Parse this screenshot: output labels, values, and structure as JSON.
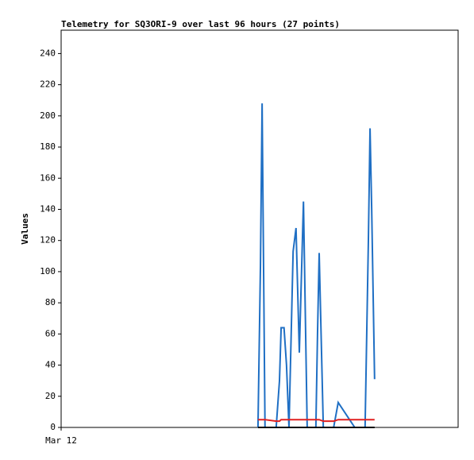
{
  "chart_data": {
    "type": "line",
    "title": "Telemetry for SQ3ORI-9 over last 96 hours (27 points)",
    "y_label": "Values",
    "x": [
      47.6,
      48.2,
      48.6,
      49.3,
      52.0,
      52.8,
      53.2,
      53.9,
      54.5,
      55.1,
      56.1,
      56.8,
      57.6,
      58.6,
      59.5,
      61.6,
      62.0,
      62.4,
      63.4,
      65.9,
      67.0,
      71.0,
      73.5,
      74.3,
      74.7,
      75.1,
      75.8
    ],
    "series": [
      {
        "color": "#1f6fc4",
        "values": [
          0,
          104,
          208,
          0,
          0,
          30,
          64,
          64,
          40,
          0,
          113,
          128,
          48,
          145,
          0,
          0,
          60,
          112,
          0,
          0,
          16,
          0,
          0,
          120,
          192,
          140,
          31
        ]
      },
      {
        "color": "#e02020",
        "values": [
          5,
          5,
          5,
          5,
          4,
          4,
          5,
          5,
          5,
          5,
          5,
          5,
          5,
          5,
          5,
          5,
          5,
          5,
          4,
          4,
          5,
          5,
          5,
          5,
          5,
          5,
          5
        ]
      },
      {
        "color": "#000000",
        "values": [
          0,
          0,
          0,
          0,
          0,
          0,
          0,
          0,
          0,
          0,
          0,
          0,
          0,
          0,
          0,
          0,
          0,
          0,
          0,
          0,
          0,
          0,
          0,
          0,
          0,
          0,
          0
        ]
      }
    ],
    "xlim": [
      0,
      96
    ],
    "xticks": [
      {
        "value": 0,
        "label": "Mar 12"
      }
    ],
    "ylim": [
      0,
      255
    ],
    "yticks": [
      0,
      20,
      40,
      60,
      80,
      100,
      120,
      140,
      160,
      180,
      200,
      220,
      240
    ]
  }
}
